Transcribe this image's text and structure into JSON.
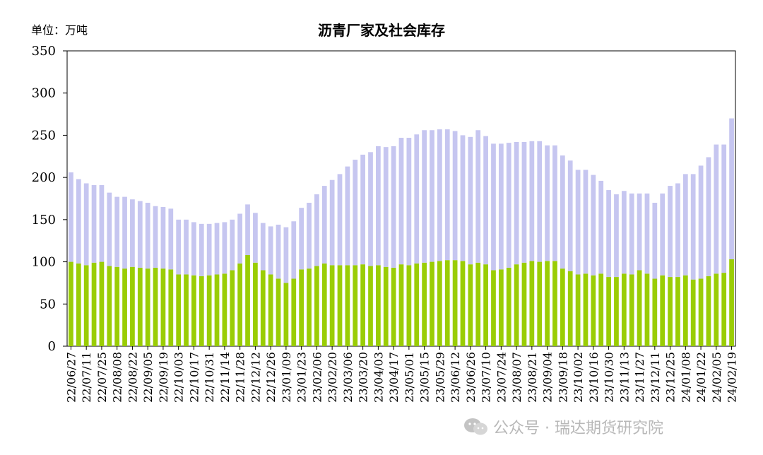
{
  "unit_label": "单位：万吨",
  "watermark": "公众号 · 瑞达期货研究院",
  "colors": {
    "factory": "#9acd05",
    "social": "#c6c6f0",
    "axis": "#000000"
  },
  "icons": {
    "watermark": "wechat-icon"
  },
  "chart_data": {
    "type": "bar",
    "stacked": true,
    "title": "沥青厂家及社会库存",
    "xlabel": "",
    "ylabel": "",
    "ylim": [
      0,
      350
    ],
    "yticks": [
      0,
      50,
      100,
      150,
      200,
      250,
      300,
      350
    ],
    "grid": false,
    "legend": "none",
    "start_date": "2022-06-27",
    "step_days": 7,
    "tick_every": 2,
    "series": [
      {
        "values": [
          100,
          98,
          96,
          99,
          100,
          95,
          94,
          92,
          94,
          93,
          92,
          93,
          92,
          91,
          85,
          85,
          84,
          83,
          84,
          85,
          86,
          90,
          98,
          108,
          99,
          90,
          85,
          80,
          75,
          80,
          91,
          92,
          95,
          98,
          96,
          96,
          96,
          96,
          97,
          95,
          96,
          94,
          93,
          97,
          96,
          98,
          99,
          100,
          101,
          102,
          102,
          101,
          97,
          99,
          97,
          90,
          91,
          93,
          97,
          99,
          101,
          100,
          101,
          101,
          92,
          89,
          85,
          86,
          84,
          86,
          82,
          82,
          86,
          85,
          90,
          86,
          80,
          84,
          82,
          82,
          84,
          79,
          80,
          83,
          86,
          87,
          103
        ]
      },
      {
        "values": [
          106,
          100,
          97,
          92,
          91,
          87,
          83,
          85,
          80,
          79,
          78,
          73,
          73,
          72,
          65,
          65,
          63,
          62,
          61,
          61,
          61,
          60,
          59,
          60,
          59,
          56,
          57,
          64,
          66,
          68,
          73,
          78,
          85,
          92,
          101,
          108,
          117,
          125,
          130,
          135,
          141,
          142,
          144,
          150,
          151,
          153,
          157,
          156,
          156,
          155,
          153,
          149,
          151,
          157,
          152,
          150,
          149,
          148,
          145,
          143,
          142,
          143,
          137,
          137,
          134,
          131,
          124,
          123,
          119,
          110,
          103,
          98,
          98,
          96,
          91,
          95,
          90,
          97,
          108,
          111,
          120,
          125,
          134,
          141,
          153,
          152,
          167
        ]
      }
    ]
  }
}
